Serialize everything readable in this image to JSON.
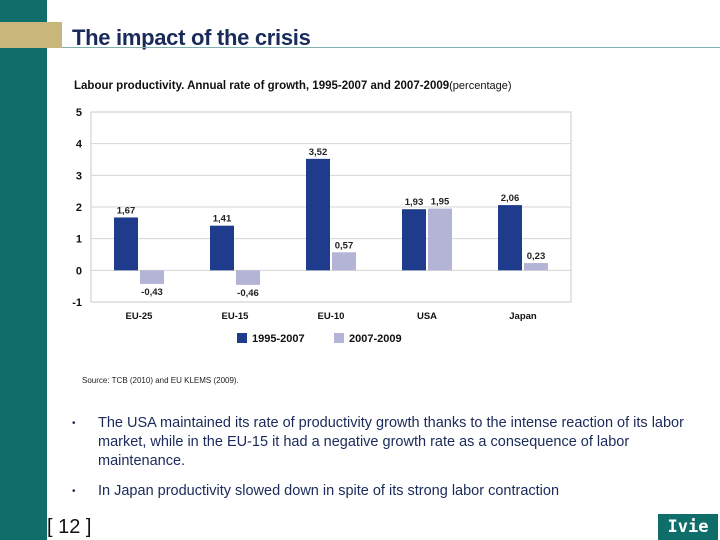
{
  "slide": {
    "title": "The impact of the crisis",
    "subtitle": "Labour productivity. Annual rate of growth, 1995-2007 and 2007-2009",
    "subtitle_unit": "(percentage)",
    "source": "Source: TCB (2010) and EU KLEMS (2009).",
    "bullets": [
      "The USA maintained its rate of productivity growth thanks to the intense reaction of its labor market, while in the EU-15 it had a negative growth rate as a consequence of labor maintenance.",
      "In Japan productivity slowed down in spite of its strong labor contraction"
    ],
    "bullet_symbol": "•",
    "page_number": "[ 12 ]",
    "logo_text": "Ivie"
  },
  "colors": {
    "sidebar": "#0f6e6a",
    "gold": "#c9b67a",
    "title": "#1a2a5a",
    "series_1995_2007": "#1f3c8c",
    "series_2007_2009": "#b4b4d6"
  },
  "chart_data": {
    "type": "bar",
    "categories": [
      "EU-25",
      "EU-15",
      "EU-10",
      "USA",
      "Japan"
    ],
    "series": [
      {
        "name": "1995-2007",
        "values": [
          1.67,
          1.41,
          3.52,
          1.93,
          2.06
        ],
        "labels": [
          "1,67",
          "1,41",
          "3,52",
          "1,93",
          "2,06"
        ],
        "color": "#1f3c8c"
      },
      {
        "name": "2007-2009",
        "values": [
          -0.43,
          -0.46,
          0.57,
          1.95,
          0.23
        ],
        "labels": [
          "-0,43",
          "-0,46",
          "0,57",
          "1,95",
          "0,23"
        ],
        "color": "#b4b4d6"
      }
    ],
    "ylim": [
      -1,
      5
    ],
    "yticks": [
      "-1",
      "0",
      "1",
      "2",
      "3",
      "4",
      "5"
    ],
    "grid": true,
    "legend_position": "bottom"
  }
}
